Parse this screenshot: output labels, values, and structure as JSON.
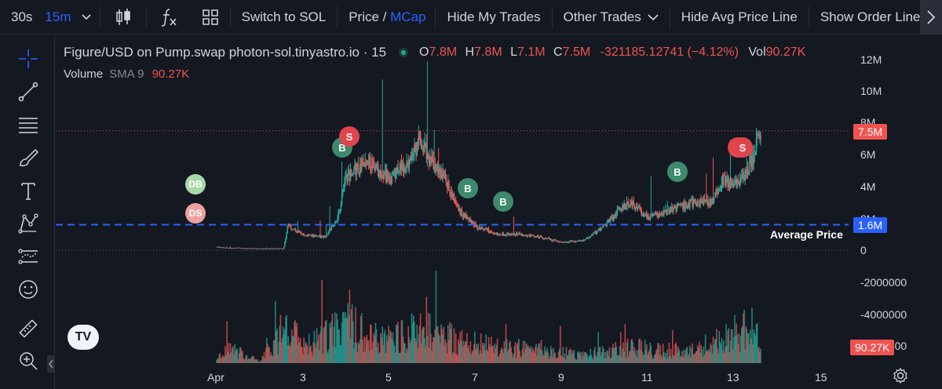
{
  "toolbar": {
    "interval_30s": "30s",
    "interval_15m": "15m",
    "switch_to_sol": "Switch to SOL",
    "price_label": "Price",
    "price_sep": " / ",
    "mcap_label": "MCap",
    "hide_my_trades": "Hide My Trades",
    "other_trades": "Other Trades",
    "hide_avg_price_line": "Hide Avg Price Line",
    "show_order_lines": "Show Order Lines"
  },
  "legend": {
    "title": "Figure/USD on Pump.swap photon-sol.tinyastro.io · 15",
    "o_key": "O",
    "o_val": "7.8M",
    "h_key": "H",
    "h_val": "7.8M",
    "l_key": "L",
    "l_val": "7.1M",
    "c_key": "C",
    "c_val": "7.5M",
    "change": "-321185.12741 (−4.12%)",
    "vol_key": "Vol",
    "vol_val": "90.27K",
    "volume_label": "Volume",
    "sma_label": "SMA 9",
    "sma_val": "90.27K"
  },
  "price_axis": [
    "12M",
    "10M",
    "8M",
    "6M",
    "4M",
    "2M",
    "0",
    "-2000000",
    "-4000000",
    "-6000000"
  ],
  "time_axis": [
    "Apr",
    "3",
    "5",
    "7",
    "9",
    "11",
    "13",
    "15"
  ],
  "tags": {
    "last_price": "7.5M",
    "avg_price": "1.6M",
    "volume": "90.27K",
    "avg_label": "Average Price"
  },
  "markers": {
    "db": "DB",
    "ds": "DS",
    "buy": "B",
    "sell": "S"
  },
  "logo": "TV",
  "colors": {
    "bg": "#141821",
    "up": "#26a69a",
    "down": "#ef5350",
    "avg_line": "#2962ff",
    "accent": "#2962ff"
  },
  "chart_data": {
    "type": "candlestick",
    "title": "Figure/USD on Pump.swap photon-sol.tinyastro.io · 15",
    "xlabel": "",
    "ylabel": "",
    "ylim": [
      -7000000,
      13000000
    ],
    "x_ticks": [
      "Apr",
      "3",
      "5",
      "7",
      "9",
      "11",
      "13",
      "15"
    ],
    "x_range_days": [
      1,
      15.8
    ],
    "series": [
      {
        "name": "Price (MCap)",
        "points": [
          [
            1.0,
            0.2
          ],
          [
            1.2,
            0.15
          ],
          [
            2.0,
            0.1
          ],
          [
            2.55,
            0.1
          ],
          [
            2.65,
            1.5
          ],
          [
            3.0,
            1.0
          ],
          [
            3.5,
            0.8
          ],
          [
            3.8,
            2.0
          ],
          [
            4.0,
            4.5
          ],
          [
            4.2,
            5.0
          ],
          [
            4.5,
            5.5
          ],
          [
            5.0,
            4.5
          ],
          [
            5.5,
            5.5
          ],
          [
            5.7,
            7.0
          ],
          [
            6.0,
            5.5
          ],
          [
            6.3,
            4.5
          ],
          [
            6.6,
            2.5
          ],
          [
            7.0,
            1.5
          ],
          [
            7.5,
            1.0
          ],
          [
            8.0,
            1.0
          ],
          [
            8.5,
            0.8
          ],
          [
            9.0,
            0.5
          ],
          [
            9.5,
            0.6
          ],
          [
            10.0,
            1.5
          ],
          [
            10.3,
            2.5
          ],
          [
            10.6,
            3.0
          ],
          [
            11.0,
            2.0
          ],
          [
            11.5,
            2.5
          ],
          [
            12.0,
            3.0
          ],
          [
            12.5,
            3.0
          ],
          [
            12.7,
            4.5
          ],
          [
            13.0,
            4.0
          ],
          [
            13.3,
            5.0
          ],
          [
            13.5,
            6.5
          ],
          [
            13.6,
            7.5
          ]
        ]
      },
      {
        "name": "Volume",
        "points": [
          [
            1.0,
            0.2
          ],
          [
            1.3,
            0.9
          ],
          [
            2.0,
            0.1
          ],
          [
            2.65,
            2.5
          ],
          [
            3.0,
            1.0
          ],
          [
            4.0,
            2.5
          ],
          [
            4.5,
            1.8
          ],
          [
            5.0,
            1.6
          ],
          [
            5.7,
            2.2
          ],
          [
            6.5,
            1.5
          ],
          [
            7.5,
            1.0
          ],
          [
            8.5,
            0.8
          ],
          [
            9.5,
            0.5
          ],
          [
            10.5,
            1.0
          ],
          [
            11.5,
            0.8
          ],
          [
            12.5,
            1.2
          ],
          [
            13.4,
            2.5
          ],
          [
            13.6,
            1.0
          ]
        ]
      }
    ],
    "average_price": 1600000,
    "last_price": 7500000
  }
}
